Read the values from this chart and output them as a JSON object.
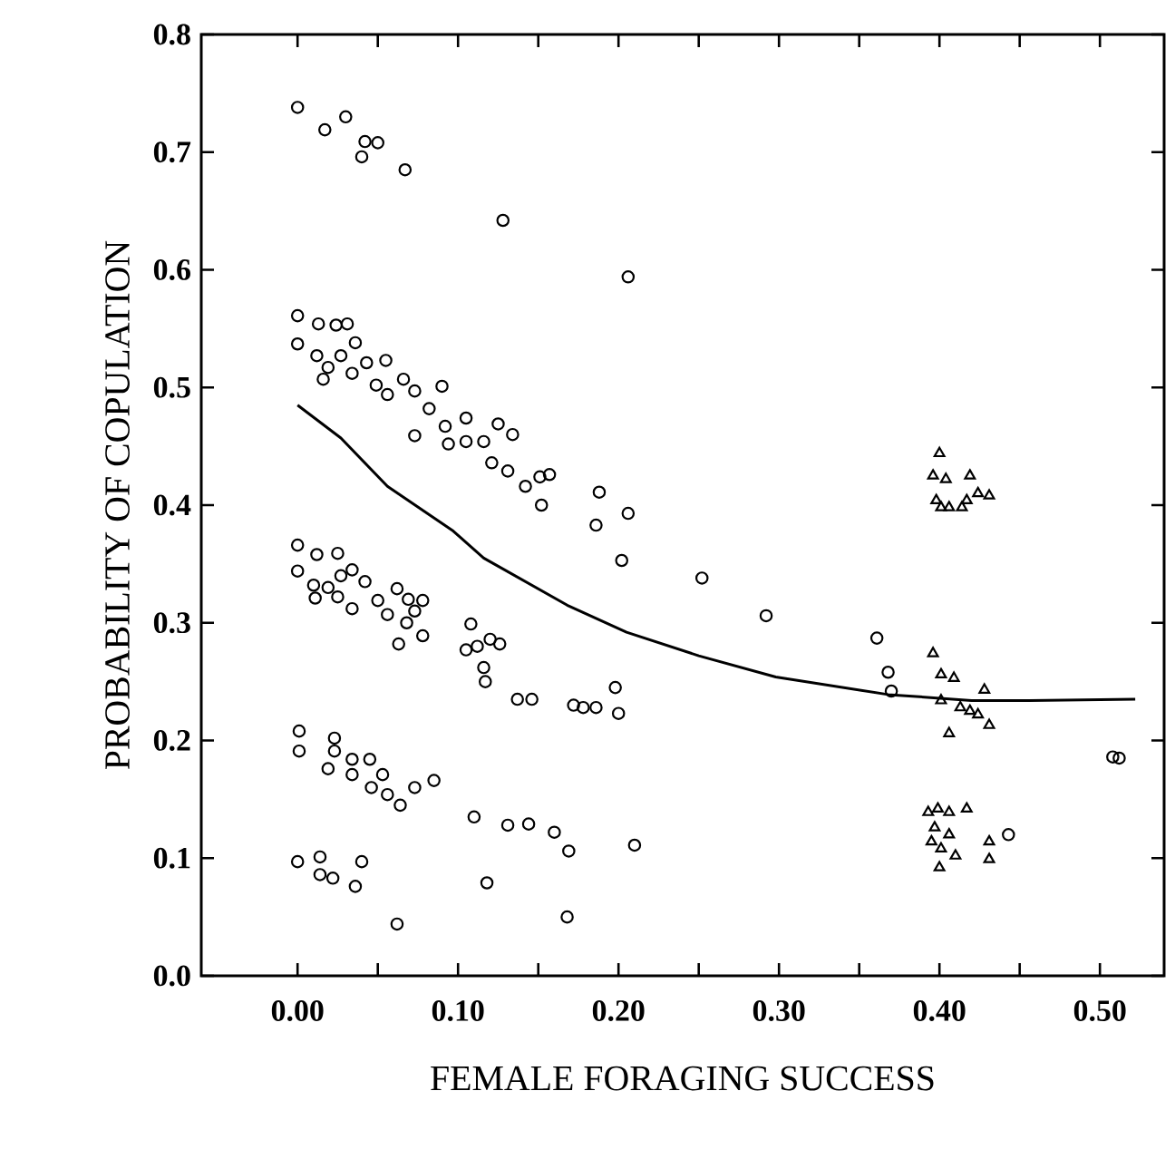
{
  "chart_data": {
    "type": "scatter",
    "xlabel": "FEMALE FORAGING SUCCESS",
    "ylabel": "PROBABILITY OF COPULATION",
    "xlim": [
      -0.06,
      0.54
    ],
    "ylim": [
      0,
      0.8
    ],
    "xticks": [
      {
        "value": 0,
        "label": "0.00"
      },
      {
        "value": 0.05,
        "label": null
      },
      {
        "value": 0.1,
        "label": "0.10"
      },
      {
        "value": 0.15,
        "label": null
      },
      {
        "value": 0.2,
        "label": "0.20"
      },
      {
        "value": 0.25,
        "label": null
      },
      {
        "value": 0.3,
        "label": "0.30"
      },
      {
        "value": 0.35,
        "label": null
      },
      {
        "value": 0.4,
        "label": "0.40"
      },
      {
        "value": 0.45,
        "label": null
      },
      {
        "value": 0.5,
        "label": "0.50"
      }
    ],
    "yticks": [
      {
        "value": 0,
        "label": "0.0"
      },
      {
        "value": 0.1,
        "label": "0.1"
      },
      {
        "value": 0.2,
        "label": "0.2"
      },
      {
        "value": 0.3,
        "label": "0.3"
      },
      {
        "value": 0.4,
        "label": "0.4"
      },
      {
        "value": 0.5,
        "label": "0.5"
      },
      {
        "value": 0.6,
        "label": "0.6"
      },
      {
        "value": 0.7,
        "label": "0.7"
      },
      {
        "value": 0.8,
        "label": "0.8"
      }
    ],
    "series": [
      {
        "marker": "circle",
        "color": "#000000",
        "x": [
          0.0,
          0.017,
          0.03,
          0.04,
          0.042,
          0.05,
          0.067,
          0.128,
          0.206,
          0.0,
          0.0,
          0.013,
          0.024,
          0.031,
          0.036,
          0.012,
          0.019,
          0.027,
          0.016,
          0.034,
          0.043,
          0.055,
          0.049,
          0.056,
          0.066,
          0.073,
          0.09,
          0.082,
          0.092,
          0.105,
          0.073,
          0.094,
          0.105,
          0.116,
          0.125,
          0.134,
          0.121,
          0.131,
          0.142,
          0.151,
          0.157,
          0.152,
          0.188,
          0.186,
          0.206,
          0.202,
          0.252,
          0.292,
          0.361,
          0.368,
          0.37,
          0.0,
          0.0,
          0.012,
          0.025,
          0.034,
          0.01,
          0.019,
          0.027,
          0.011,
          0.025,
          0.034,
          0.042,
          0.05,
          0.056,
          0.062,
          0.069,
          0.078,
          0.073,
          0.068,
          0.078,
          0.063,
          0.108,
          0.105,
          0.112,
          0.12,
          0.126,
          0.116,
          0.117,
          0.137,
          0.146,
          0.172,
          0.178,
          0.186,
          0.198,
          0.2,
          0.001,
          0.001,
          0.023,
          0.023,
          0.019,
          0.034,
          0.045,
          0.034,
          0.053,
          0.046,
          0.056,
          0.064,
          0.073,
          0.085,
          0.11,
          0.131,
          0.144,
          0.16,
          0.169,
          0.21,
          0.118,
          0.168,
          0.0,
          0.014,
          0.014,
          0.022,
          0.04,
          0.036,
          0.062,
          0.512,
          0.508,
          0.443
        ],
        "values": [
          0.738,
          0.719,
          0.73,
          0.696,
          0.709,
          0.708,
          0.685,
          0.642,
          0.594,
          0.561,
          0.537,
          0.554,
          0.553,
          0.554,
          0.538,
          0.527,
          0.517,
          0.527,
          0.507,
          0.512,
          0.521,
          0.523,
          0.502,
          0.494,
          0.507,
          0.497,
          0.501,
          0.482,
          0.467,
          0.474,
          0.459,
          0.452,
          0.454,
          0.454,
          0.469,
          0.46,
          0.436,
          0.429,
          0.416,
          0.424,
          0.426,
          0.4,
          0.411,
          0.383,
          0.393,
          0.353,
          0.338,
          0.306,
          0.287,
          0.258,
          0.242,
          0.366,
          0.344,
          0.358,
          0.359,
          0.345,
          0.332,
          0.33,
          0.34,
          0.321,
          0.322,
          0.312,
          0.335,
          0.319,
          0.307,
          0.329,
          0.32,
          0.319,
          0.31,
          0.3,
          0.289,
          0.282,
          0.299,
          0.277,
          0.28,
          0.286,
          0.282,
          0.262,
          0.25,
          0.235,
          0.235,
          0.23,
          0.228,
          0.228,
          0.245,
          0.223,
          0.208,
          0.191,
          0.202,
          0.191,
          0.176,
          0.184,
          0.184,
          0.171,
          0.171,
          0.16,
          0.154,
          0.145,
          0.16,
          0.166,
          0.135,
          0.128,
          0.129,
          0.122,
          0.106,
          0.111,
          0.079,
          0.05,
          0.097,
          0.101,
          0.086,
          0.083,
          0.097,
          0.076,
          0.044,
          0.185,
          0.186,
          0.12
        ]
      },
      {
        "marker": "triangle",
        "color": "#000000",
        "x": [
          0.4,
          0.396,
          0.404,
          0.398,
          0.406,
          0.419,
          0.417,
          0.424,
          0.431,
          0.414,
          0.401,
          0.396,
          0.401,
          0.409,
          0.401,
          0.406,
          0.413,
          0.419,
          0.428,
          0.424,
          0.431,
          0.393,
          0.399,
          0.406,
          0.417,
          0.397,
          0.406,
          0.395,
          0.401,
          0.41,
          0.4,
          0.431,
          0.431
        ],
        "values": [
          0.444,
          0.425,
          0.422,
          0.404,
          0.398,
          0.425,
          0.404,
          0.41,
          0.408,
          0.398,
          0.398,
          0.274,
          0.256,
          0.253,
          0.234,
          0.206,
          0.228,
          0.225,
          0.243,
          0.222,
          0.213,
          0.139,
          0.142,
          0.139,
          0.142,
          0.126,
          0.12,
          0.114,
          0.108,
          0.102,
          0.092,
          0.114,
          0.099
        ]
      },
      {
        "type": "line",
        "marker": "none",
        "line_style": "solid",
        "color": "#000000",
        "x": [
          0,
          0.027,
          0.056,
          0.097,
          0.116,
          0.168,
          0.205,
          0.25,
          0.298,
          0.368,
          0.42,
          0.456,
          0.522
        ],
        "values": [
          0.485,
          0.457,
          0.416,
          0.378,
          0.355,
          0.315,
          0.292,
          0.272,
          0.254,
          0.239,
          0.234,
          0.234,
          0.235
        ]
      }
    ]
  }
}
